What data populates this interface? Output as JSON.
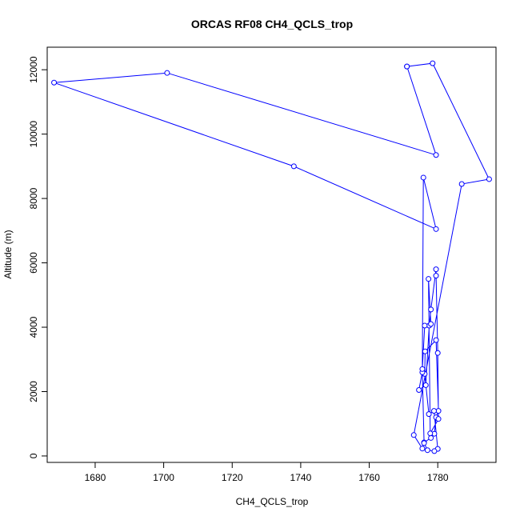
{
  "chart_data": {
    "type": "line",
    "title": "ORCAS RF08 CH4_QCLS_trop",
    "xlabel": "CH4_QCLS_trop",
    "ylabel": "Altitude (m)",
    "xlim": [
      1666,
      1797
    ],
    "ylim": [
      -200,
      12700
    ],
    "x_ticks": [
      1680,
      1700,
      1720,
      1740,
      1760,
      1780
    ],
    "y_ticks": [
      0,
      2000,
      4000,
      6000,
      8000,
      10000,
      12000
    ],
    "marker": "open-circle",
    "line_color": "#0000ff",
    "grid": false,
    "series": [
      {
        "x": [
          1771,
          1778.5,
          1795,
          1787,
          1773,
          1775.5,
          1776,
          1778,
          1779,
          1779.5,
          1780.2,
          1779.5,
          1776.3,
          1776.2,
          1777.4,
          1778.9,
          1780,
          1779,
          1777,
          1776,
          1775.5,
          1774.5,
          1776.5,
          1777.5,
          1778,
          1779.5,
          1779.5,
          1780,
          1780.2,
          1777.8,
          1777.3,
          1778,
          1776.2,
          1775.5,
          1775.8,
          1779.5,
          1738,
          1668,
          1701,
          1779.5,
          1771
        ],
        "y": [
          12100,
          12200,
          8600,
          8450,
          650,
          230,
          420,
          560,
          690,
          1200,
          1400,
          3600,
          3250,
          2550,
          1300,
          1400,
          220,
          150,
          180,
          400,
          2600,
          2050,
          2200,
          4050,
          4550,
          5800,
          5600,
          3200,
          1150,
          700,
          5500,
          4100,
          4050,
          2700,
          8650,
          7050,
          9000,
          11600,
          11900,
          9350,
          12100
        ]
      }
    ]
  }
}
